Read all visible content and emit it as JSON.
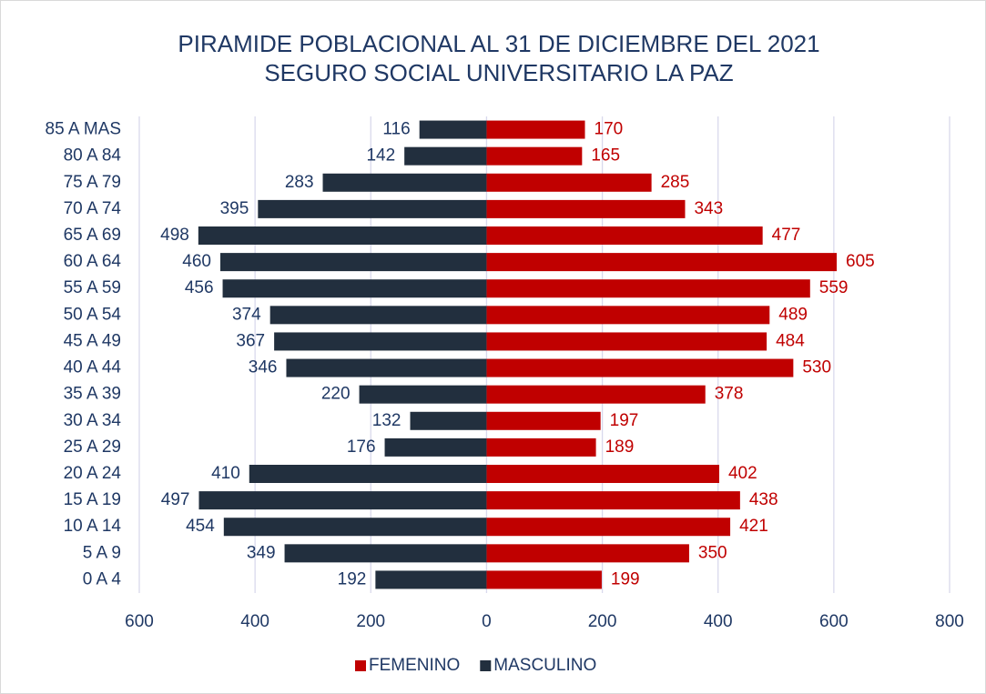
{
  "chart_data": {
    "type": "pyramid",
    "title": "PIRAMIDE POBLACIONAL AL 31 DE DICIEMBRE DEL 2021",
    "subtitle": "SEGURO SOCIAL UNIVERSITARIO LA PAZ",
    "categories": [
      "85 A MAS",
      "80 A 84",
      "75 A 79",
      "70 A 74",
      "65 A 69",
      "60 A 64",
      "55 A 59",
      "50 A 54",
      "45 A 49",
      "40 A 44",
      "35 A 39",
      "30 A 34",
      "25 A 29",
      "20 A 24",
      "15 A 19",
      "10 A 14",
      "5 A 9",
      "0 A 4"
    ],
    "series": [
      {
        "name": "FEMENINO",
        "color": "#c00000",
        "values": [
          170,
          165,
          285,
          343,
          477,
          605,
          559,
          489,
          484,
          530,
          378,
          197,
          189,
          402,
          438,
          421,
          350,
          199
        ]
      },
      {
        "name": "MASCULINO",
        "color": "#222f3e",
        "values": [
          -116,
          -142,
          -283,
          -395,
          -498,
          -460,
          -456,
          -374,
          -367,
          -346,
          -220,
          -132,
          -176,
          -410,
          -497,
          -454,
          -349,
          -192
        ],
        "value_labels": [
          "116",
          "142",
          "283",
          "395",
          "498",
          "460",
          "456",
          "374",
          "367",
          "346",
          "220",
          "132",
          "176",
          "410",
          "497",
          "454",
          "349",
          "192"
        ]
      }
    ],
    "xlim": [
      -600,
      800
    ],
    "xticks": [
      {
        "value": -600,
        "label": "600"
      },
      {
        "value": -400,
        "label": "400"
      },
      {
        "value": -200,
        "label": "200"
      },
      0,
      200,
      400,
      600,
      800
    ],
    "grid": true,
    "legend": "bottom"
  }
}
